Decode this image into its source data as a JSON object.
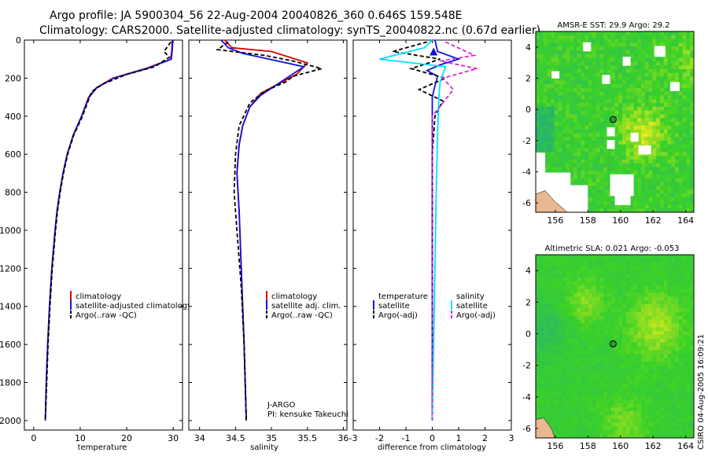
{
  "title": {
    "line1": "Argo profile: JA 5900304_56 22-Aug-2004 20040826_360 0.646S 159.548E",
    "line2": "Climatology: CARS2000. Satellite-adjusted climatology: synTS_20040822.nc (0.67d earlier)"
  },
  "side_label": "CSIRO 04-Aug-2005 16:09:21",
  "colors": {
    "clim": "#e00000",
    "sat": "#1010e0",
    "argo": "#000000",
    "sal_sat": "#00e0ff",
    "sal_argo": "#e020e0",
    "land": "#e8b890",
    "empty": "#ffffff"
  },
  "chart_data": [
    {
      "id": "temperature",
      "type": "line",
      "xlabel": "temperature",
      "ylabel": "",
      "xlim": [
        -2,
        32
      ],
      "ylim": [
        2050,
        0
      ],
      "xticks": [
        0,
        10,
        20,
        30
      ],
      "yticks": [
        0,
        200,
        400,
        600,
        800,
        1000,
        1200,
        1400,
        1600,
        1800,
        2000
      ],
      "legend": [
        "climatology",
        "satellite-adjusted climatology",
        "Argo(..raw -QC)"
      ],
      "series": [
        {
          "name": "climatology",
          "color": "#e00000",
          "dash": false,
          "points": [
            [
              29.8,
              0
            ],
            [
              29.7,
              50
            ],
            [
              29.5,
              100
            ],
            [
              24,
              150
            ],
            [
              17,
              200
            ],
            [
              13.5,
              250
            ],
            [
              11.8,
              300
            ],
            [
              10.3,
              400
            ],
            [
              8.5,
              500
            ],
            [
              7.2,
              600
            ],
            [
              6.3,
              700
            ],
            [
              5.6,
              800
            ],
            [
              5.0,
              900
            ],
            [
              4.6,
              1000
            ],
            [
              3.9,
              1200
            ],
            [
              3.4,
              1400
            ],
            [
              3.0,
              1600
            ],
            [
              2.7,
              1800
            ],
            [
              2.5,
              2000
            ]
          ]
        },
        {
          "name": "satellite-adjusted climatology",
          "color": "#1010e0",
          "dash": false,
          "points": [
            [
              29.9,
              0
            ],
            [
              29.8,
              50
            ],
            [
              29.6,
              100
            ],
            [
              24.3,
              150
            ],
            [
              17.2,
              200
            ],
            [
              13.6,
              250
            ],
            [
              11.9,
              300
            ],
            [
              10.3,
              400
            ],
            [
              8.5,
              500
            ],
            [
              7.2,
              600
            ],
            [
              6.3,
              700
            ],
            [
              5.6,
              800
            ],
            [
              5.0,
              900
            ],
            [
              4.6,
              1000
            ],
            [
              3.9,
              1200
            ],
            [
              3.4,
              1400
            ],
            [
              3.0,
              1600
            ],
            [
              2.7,
              1800
            ],
            [
              2.5,
              2000
            ]
          ]
        },
        {
          "name": "Argo(..raw -QC)",
          "color": "#000000",
          "dash": true,
          "points": [
            [
              29.5,
              10
            ],
            [
              28,
              60
            ],
            [
              29.2,
              90
            ],
            [
              26,
              140
            ],
            [
              20,
              180
            ],
            [
              15,
              230
            ],
            [
              12.5,
              270
            ],
            [
              12,
              300
            ],
            [
              10.5,
              400
            ],
            [
              8.6,
              500
            ],
            [
              7.3,
              600
            ],
            [
              6.4,
              700
            ],
            [
              5.7,
              800
            ],
            [
              5.1,
              900
            ],
            [
              4.7,
              1000
            ],
            [
              4.0,
              1200
            ],
            [
              3.5,
              1400
            ],
            [
              3.1,
              1600
            ],
            [
              2.8,
              1800
            ],
            [
              2.5,
              2000
            ]
          ]
        }
      ]
    },
    {
      "id": "salinity",
      "type": "line",
      "xlabel": "salinity",
      "ylabel": "",
      "xlim": [
        33.85,
        36.05
      ],
      "ylim": [
        2050,
        0
      ],
      "xticks": [
        34,
        34.5,
        35,
        35.5,
        36
      ],
      "legend": [
        "climatology",
        "satellite adj. clim.",
        "Argo(..raw -QC)"
      ],
      "annotation": [
        "J-ARGO",
        "PI: kensuke Takeuchi"
      ],
      "series": [
        {
          "name": "climatology",
          "color": "#e00000",
          "dash": false,
          "points": [
            [
              34.35,
              0
            ],
            [
              34.45,
              40
            ],
            [
              35.0,
              60
            ],
            [
              35.5,
              120
            ],
            [
              35.35,
              180
            ],
            [
              35.1,
              230
            ],
            [
              34.85,
              280
            ],
            [
              34.7,
              350
            ],
            [
              34.6,
              450
            ],
            [
              34.55,
              550
            ],
            [
              34.52,
              700
            ],
            [
              34.55,
              900
            ],
            [
              34.58,
              1200
            ],
            [
              34.62,
              1600
            ],
            [
              34.65,
              2000
            ]
          ]
        },
        {
          "name": "satellite adj. clim.",
          "color": "#1010e0",
          "dash": false,
          "points": [
            [
              34.3,
              0
            ],
            [
              34.4,
              40
            ],
            [
              34.6,
              70
            ],
            [
              35.45,
              140
            ],
            [
              35.25,
              190
            ],
            [
              35.05,
              240
            ],
            [
              34.85,
              290
            ],
            [
              34.7,
              350
            ],
            [
              34.6,
              450
            ],
            [
              34.55,
              550
            ],
            [
              34.52,
              700
            ],
            [
              34.55,
              900
            ],
            [
              34.58,
              1200
            ],
            [
              34.62,
              1600
            ],
            [
              34.65,
              2000
            ]
          ]
        },
        {
          "name": "Argo(..raw -QC)",
          "color": "#000000",
          "dash": true,
          "points": [
            [
              34.4,
              10
            ],
            [
              34.25,
              50
            ],
            [
              34.9,
              80
            ],
            [
              35.3,
              110
            ],
            [
              35.7,
              150
            ],
            [
              35.3,
              190
            ],
            [
              35.2,
              220
            ],
            [
              34.9,
              270
            ],
            [
              34.7,
              330
            ],
            [
              34.55,
              450
            ],
            [
              34.5,
              600
            ],
            [
              34.48,
              800
            ],
            [
              34.52,
              1000
            ],
            [
              34.58,
              1300
            ],
            [
              34.62,
              1600
            ],
            [
              34.65,
              2000
            ]
          ]
        }
      ]
    },
    {
      "id": "difference",
      "type": "line",
      "xlabel": "difference from climatology",
      "ylabel": "",
      "xlim": [
        -3,
        3
      ],
      "ylim": [
        2050,
        0
      ],
      "xticks": [
        -3,
        -2,
        -1,
        0,
        1,
        2,
        3
      ],
      "legend_left": [
        "temperature",
        "satellite",
        "Argo(-adj)"
      ],
      "legend_right": [
        "salinity",
        "satellite",
        "Argo(-adj)"
      ],
      "series": [
        {
          "name": "temperature satellite",
          "color": "#1010e0",
          "dash": false,
          "points": [
            [
              0.1,
              0
            ],
            [
              0.2,
              60
            ],
            [
              1.0,
              100
            ],
            [
              0.3,
              130
            ],
            [
              -0.2,
              160
            ],
            [
              0.2,
              190
            ],
            [
              0.1,
              240
            ],
            [
              0.0,
              300
            ],
            [
              0.0,
              500
            ],
            [
              0.0,
              1000
            ],
            [
              0.0,
              2000
            ]
          ]
        },
        {
          "name": "temperature Argo(-adj)",
          "color": "#000000",
          "dash": true,
          "points": [
            [
              -0.2,
              10
            ],
            [
              -1.5,
              60
            ],
            [
              0.3,
              100
            ],
            [
              -0.8,
              150
            ],
            [
              0.5,
              200
            ],
            [
              -0.5,
              260
            ],
            [
              0.4,
              320
            ],
            [
              0.1,
              400
            ],
            [
              0.0,
              600
            ],
            [
              0.0,
              1000
            ],
            [
              0.0,
              2000
            ]
          ]
        },
        {
          "name": "salinity satellite",
          "color": "#00e0ff",
          "dash": false,
          "points": [
            [
              0.0,
              0
            ],
            [
              -0.3,
              40
            ],
            [
              -2.0,
              100
            ],
            [
              0.5,
              140
            ],
            [
              0.3,
              220
            ],
            [
              0.25,
              300
            ],
            [
              0.2,
              500
            ],
            [
              0.15,
              800
            ],
            [
              0.1,
              1200
            ],
            [
              0.05,
              1600
            ],
            [
              0.0,
              2000
            ]
          ]
        },
        {
          "name": "salinity Argo(-adj)",
          "color": "#e020e0",
          "dash": true,
          "points": [
            [
              0.5,
              10
            ],
            [
              1.6,
              80
            ],
            [
              0.3,
              110
            ],
            [
              1.7,
              150
            ],
            [
              0.4,
              200
            ],
            [
              0.8,
              260
            ],
            [
              0.0,
              400
            ],
            [
              0.0,
              600
            ],
            [
              0.0,
              1000
            ],
            [
              0.0,
              2000
            ]
          ]
        }
      ]
    },
    {
      "id": "sst_map",
      "type": "heatmap",
      "title": "AMSR-E SST: 29.9 Argo: 29.2",
      "xlim": [
        154.8,
        164.5
      ],
      "ylim": [
        -6.6,
        5.0
      ],
      "xticks": [
        156,
        158,
        160,
        162,
        164
      ],
      "yticks": [
        -6,
        -4,
        -2,
        0,
        2,
        4
      ],
      "argo_position": [
        159.548,
        -0.646
      ]
    },
    {
      "id": "sla_map",
      "type": "heatmap",
      "title": "Altimetric SLA: 0.021 Argo: -0.053",
      "xlim": [
        154.8,
        164.5
      ],
      "ylim": [
        -6.6,
        5.0
      ],
      "xticks": [
        156,
        158,
        160,
        162,
        164
      ],
      "yticks": [
        -6,
        -4,
        -2,
        0,
        2,
        4
      ],
      "argo_position": [
        159.548,
        -0.646
      ]
    }
  ]
}
